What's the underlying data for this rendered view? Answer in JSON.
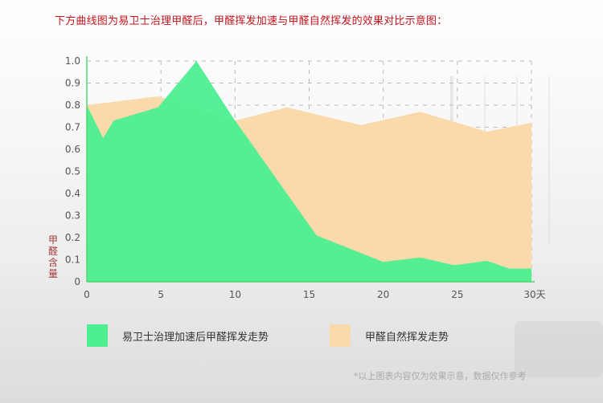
{
  "intro": "下方曲线图为易卫士治理甲醛后，甲醛挥发加速与甲醛自然挥发的效果对比示意图：",
  "chart_data": {
    "type": "area",
    "ylabel": "甲醛含量",
    "xlabel": "",
    "x_ticks": [
      0,
      5,
      10,
      15,
      20,
      25,
      30
    ],
    "x_tick_labels": [
      "0",
      "5",
      "10",
      "15",
      "20",
      "25",
      "30天"
    ],
    "y_ticks": [
      0,
      0.1,
      0.2,
      0.3,
      0.4,
      0.5,
      0.6,
      0.7,
      0.8,
      0.9,
      1.0
    ],
    "y_tick_labels": [
      "0",
      "0.1",
      "0.2",
      "0.3",
      "0.4",
      "0.5",
      "0.6",
      "0.7",
      "0.8",
      "0.9",
      "1.0"
    ],
    "xlim": [
      0,
      30
    ],
    "ylim": [
      0,
      1.0
    ],
    "grid": "dashed",
    "legend_position": "bottom",
    "series": [
      {
        "name": "甲醛自然挥发走势",
        "color": "#fad9aa",
        "points": [
          [
            0,
            0.8
          ],
          [
            4.8,
            0.84
          ],
          [
            10,
            0.73
          ],
          [
            13.5,
            0.79
          ],
          [
            18.5,
            0.71
          ],
          [
            22.5,
            0.77
          ],
          [
            27,
            0.68
          ],
          [
            30,
            0.72
          ]
        ]
      },
      {
        "name": "易卫士治理加速后甲醛挥发走势",
        "color": "#4def90",
        "points": [
          [
            0,
            0.8
          ],
          [
            1.1,
            0.65
          ],
          [
            1.8,
            0.73
          ],
          [
            4.8,
            0.79
          ],
          [
            7.4,
            1.0
          ],
          [
            9.8,
            0.75
          ],
          [
            15.5,
            0.21
          ],
          [
            20,
            0.09
          ],
          [
            22.5,
            0.11
          ],
          [
            24.8,
            0.075
          ],
          [
            27,
            0.095
          ],
          [
            28.5,
            0.06
          ],
          [
            30,
            0.06
          ]
        ]
      }
    ]
  },
  "legend": {
    "accelerated_label": "易卫士治理加速后甲醛挥发走势",
    "natural_label": "甲醛自然挥发走势"
  },
  "colors": {
    "accelerated": "#4def90",
    "natural": "#fad9aa",
    "intro_text": "#c4121b",
    "axis": "#55d36e"
  },
  "footnote": "*以上图表内容仅为效果示意，数据仅作参考"
}
